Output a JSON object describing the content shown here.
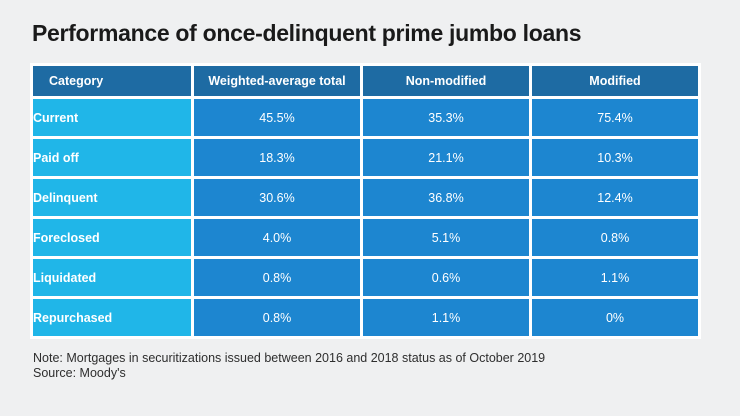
{
  "title": "Performance of once-delinquent prime jumbo loans",
  "table": {
    "headers": [
      "Category",
      "Weighted-average total",
      "Non-modified",
      "Modified"
    ],
    "rows": [
      {
        "category": "Current",
        "values": [
          "45.5%",
          "35.3%",
          "75.4%"
        ]
      },
      {
        "category": "Paid off",
        "values": [
          "18.3%",
          "21.1%",
          "10.3%"
        ]
      },
      {
        "category": "Delinquent",
        "values": [
          "30.6%",
          "36.8%",
          "12.4%"
        ]
      },
      {
        "category": "Foreclosed",
        "values": [
          "4.0%",
          "5.1%",
          "0.8%"
        ]
      },
      {
        "category": "Liquidated",
        "values": [
          "0.8%",
          "0.6%",
          "1.1%"
        ]
      },
      {
        "category": "Repurchased",
        "values": [
          "0.8%",
          "1.1%",
          "0%"
        ]
      }
    ]
  },
  "notes": {
    "note": "Note: Mortgages in securitizations issued between 2016 and 2018 status as of October 2019",
    "source": "Source: Moody's"
  },
  "colors": {
    "background": "#eff0f1",
    "header_bg": "#1e6ba3",
    "category_bg": "#20b6e8",
    "value_bg": "#1d86d0",
    "cell_text": "#ffffff",
    "title_text": "#1a1a1a"
  },
  "chart_data": {
    "type": "table",
    "title": "Performance of once-delinquent prime jumbo loans",
    "columns": [
      "Category",
      "Weighted-average total",
      "Non-modified",
      "Modified"
    ],
    "rows": [
      [
        "Current",
        "45.5%",
        "35.3%",
        "75.4%"
      ],
      [
        "Paid off",
        "18.3%",
        "21.1%",
        "10.3%"
      ],
      [
        "Delinquent",
        "30.6%",
        "36.8%",
        "12.4%"
      ],
      [
        "Foreclosed",
        "4.0%",
        "5.1%",
        "0.8%"
      ],
      [
        "Liquidated",
        "0.8%",
        "0.6%",
        "1.1%"
      ],
      [
        "Repurchased",
        "0.8%",
        "1.1%",
        "0%"
      ]
    ],
    "note": "Note: Mortgages in securitizations issued between 2016 and 2018 status as of October 2019",
    "source": "Source: Moody's"
  }
}
